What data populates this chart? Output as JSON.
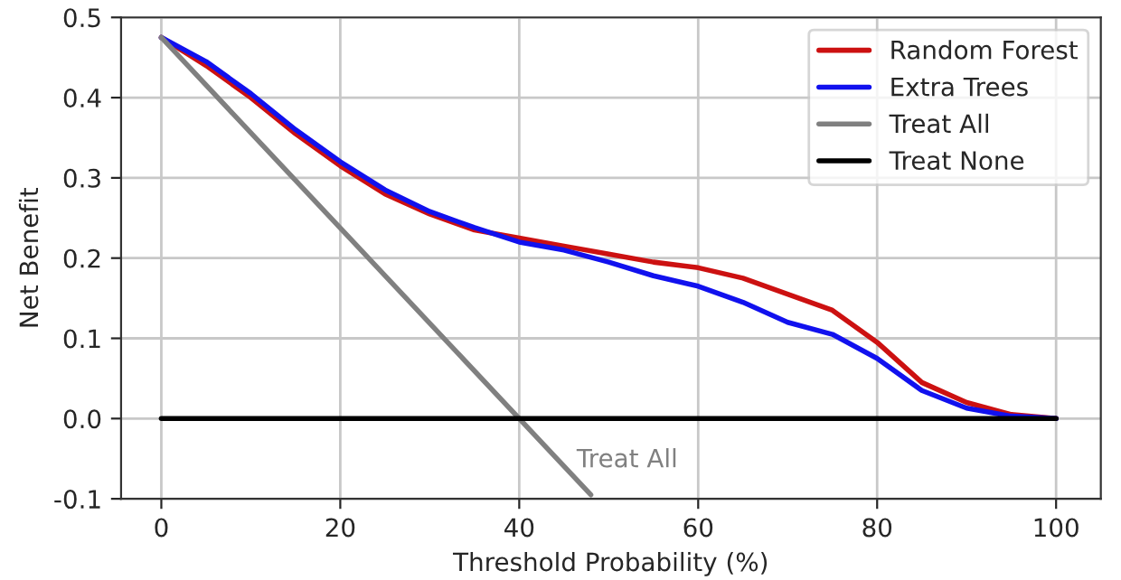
{
  "chart_data": {
    "type": "line",
    "xlabel": "Threshold Probability (%)",
    "ylabel": "Net Benefit",
    "xlim": [
      -4.5,
      105
    ],
    "xticks": [
      0,
      20,
      40,
      60,
      80,
      100
    ],
    "ylim": [
      -0.1,
      0.5
    ],
    "yticks": [
      -0.1,
      {
        "value": 0,
        "label": "0.0"
      },
      0.1,
      0.2,
      0.3,
      0.4,
      0.5
    ],
    "grid": true,
    "legend": "top right",
    "series": [
      {
        "name": "Random Forest",
        "color": "#cc1111",
        "x": [
          0,
          5,
          10,
          15,
          20,
          25,
          30,
          35,
          40,
          45,
          50,
          55,
          60,
          65,
          70,
          75,
          80,
          85,
          90,
          95,
          100
        ],
        "values": [
          0.475,
          0.44,
          0.4,
          0.355,
          0.315,
          0.28,
          0.255,
          0.235,
          0.225,
          0.215,
          0.205,
          0.195,
          0.188,
          0.175,
          0.155,
          0.135,
          0.095,
          0.045,
          0.02,
          0.005,
          0.0
        ]
      },
      {
        "name": "Extra Trees",
        "color": "#1111ee",
        "x": [
          0,
          5,
          10,
          15,
          20,
          25,
          30,
          35,
          40,
          45,
          50,
          55,
          60,
          65,
          70,
          75,
          80,
          85,
          90,
          95,
          100
        ],
        "values": [
          0.475,
          0.445,
          0.405,
          0.36,
          0.32,
          0.285,
          0.258,
          0.238,
          0.22,
          0.21,
          0.195,
          0.178,
          0.165,
          0.145,
          0.12,
          0.105,
          0.075,
          0.035,
          0.013,
          0.003,
          0.0
        ]
      },
      {
        "name": "Treat All",
        "color": "#808080",
        "x": [
          0,
          48
        ],
        "values": [
          0.475,
          -0.095
        ]
      },
      {
        "name": "Treat None",
        "color": "#000000",
        "x": [
          0,
          100
        ],
        "values": [
          0.0,
          0.0
        ]
      }
    ],
    "annotations": [
      "Treat All"
    ]
  }
}
